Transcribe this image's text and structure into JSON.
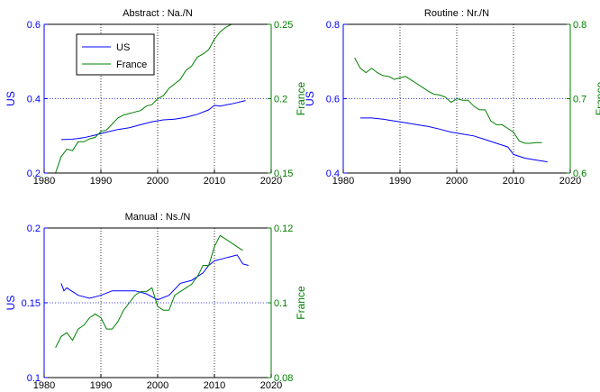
{
  "colors": {
    "us": "#0000ff",
    "france": "#008000",
    "axis": "#000000",
    "grid": "#000000"
  },
  "chart_data": [
    {
      "type": "line",
      "title": "Abstract : Na./N",
      "xlabel": "",
      "ylabel_left": "US",
      "ylabel_right": "France",
      "xlim": [
        1980,
        2020
      ],
      "xticks": [
        "1980",
        "1990",
        "2000",
        "2010",
        "2020"
      ],
      "ylim_left": [
        0.2,
        0.6
      ],
      "yticks_left": [
        "0.2",
        "0.4",
        "0.6"
      ],
      "ylim_right": [
        0.15,
        0.25
      ],
      "yticks_right": [
        "0.15",
        "0.2",
        "0.25"
      ],
      "grid": true,
      "legend": {
        "placement": "top-left",
        "entries": [
          "US",
          "France"
        ]
      },
      "series": [
        {
          "name": "US",
          "axis": "left",
          "x": [
            1983,
            1985,
            1987,
            1989,
            1991,
            1993,
            1995,
            1997,
            1999,
            2001,
            2003,
            2005,
            2007,
            2009,
            2010,
            2011,
            2013,
            2015.5
          ],
          "y": [
            0.29,
            0.291,
            0.295,
            0.302,
            0.31,
            0.317,
            0.322,
            0.33,
            0.338,
            0.343,
            0.345,
            0.35,
            0.358,
            0.37,
            0.382,
            0.38,
            0.386,
            0.395
          ]
        },
        {
          "name": "France",
          "axis": "right",
          "x": [
            1982,
            1983,
            1984,
            1985,
            1986,
            1987,
            1988,
            1989,
            1990,
            1991,
            1992,
            1993,
            1994,
            1995,
            1996,
            1997,
            1998,
            1999,
            2000,
            2001,
            2002,
            2003,
            2004,
            2005,
            2006,
            2007,
            2008,
            2009,
            2010,
            2011,
            2012,
            2013,
            2014,
            2015
          ],
          "y": [
            0.15,
            0.161,
            0.166,
            0.165,
            0.171,
            0.171,
            0.173,
            0.174,
            0.178,
            0.179,
            0.183,
            0.187,
            0.189,
            0.19,
            0.191,
            0.192,
            0.195,
            0.196,
            0.2,
            0.202,
            0.207,
            0.21,
            0.213,
            0.219,
            0.222,
            0.228,
            0.23,
            0.233,
            0.24,
            0.245,
            0.248,
            0.25,
            0.25,
            0.25
          ]
        }
      ]
    },
    {
      "type": "line",
      "title": "Routine : Nr./N",
      "xlabel": "",
      "ylabel_left": "US",
      "ylabel_right": "France",
      "xlim": [
        1980,
        2020
      ],
      "xticks": [
        "1980",
        "1990",
        "2000",
        "2010",
        "2020"
      ],
      "ylim_left": [
        0.4,
        0.8
      ],
      "yticks_left": [
        "0.4",
        "0.6",
        "0.8"
      ],
      "ylim_right": [
        0.6,
        0.8
      ],
      "yticks_right": [
        "0.6",
        "0.7",
        "0.8"
      ],
      "grid": true,
      "legend": null,
      "series": [
        {
          "name": "US",
          "axis": "left",
          "x": [
            1983,
            1985,
            1987,
            1989,
            1991,
            1993,
            1995,
            1997,
            1999,
            2001,
            2003,
            2005,
            2007,
            2009,
            2010,
            2012,
            2014,
            2016
          ],
          "y": [
            0.548,
            0.548,
            0.545,
            0.54,
            0.535,
            0.53,
            0.525,
            0.518,
            0.51,
            0.505,
            0.5,
            0.49,
            0.48,
            0.47,
            0.45,
            0.44,
            0.435,
            0.43
          ]
        },
        {
          "name": "France",
          "axis": "right",
          "x": [
            1982,
            1983,
            1984,
            1985,
            1986,
            1987,
            1988,
            1989,
            1990,
            1991,
            1992,
            1993,
            1994,
            1995,
            1996,
            1997,
            1998,
            1999,
            2000,
            2001,
            2002,
            2003,
            2004,
            2005,
            2006,
            2007,
            2008,
            2009,
            2010,
            2011,
            2012,
            2013,
            2014,
            2015
          ],
          "y": [
            0.755,
            0.741,
            0.735,
            0.741,
            0.735,
            0.731,
            0.73,
            0.726,
            0.728,
            0.73,
            0.725,
            0.72,
            0.715,
            0.71,
            0.706,
            0.705,
            0.702,
            0.695,
            0.7,
            0.698,
            0.698,
            0.69,
            0.685,
            0.685,
            0.67,
            0.665,
            0.665,
            0.66,
            0.655,
            0.643,
            0.64,
            0.64,
            0.641,
            0.641
          ]
        }
      ]
    },
    {
      "type": "line",
      "title": "Manual : Ns./N",
      "xlabel": "",
      "ylabel_left": "US",
      "ylabel_right": "France",
      "xlim": [
        1980,
        2020
      ],
      "xticks": [
        "1980",
        "1990",
        "2000",
        "2010",
        "2020"
      ],
      "ylim_left": [
        0.1,
        0.2
      ],
      "yticks_left": [
        "0.1",
        "0.15",
        "0.2"
      ],
      "ylim_right": [
        0.08,
        0.12
      ],
      "yticks_right": [
        "0.08",
        "0.1",
        "0.12"
      ],
      "grid": true,
      "legend": null,
      "series": [
        {
          "name": "US",
          "axis": "left",
          "x": [
            1983,
            1983.5,
            1984,
            1986,
            1988,
            1990,
            1992,
            1994,
            1996,
            1998,
            2000,
            2002,
            2004,
            2006,
            2008,
            2009,
            2010,
            2012,
            2014,
            2015,
            2016
          ],
          "y": [
            0.163,
            0.158,
            0.16,
            0.155,
            0.153,
            0.155,
            0.158,
            0.158,
            0.158,
            0.156,
            0.152,
            0.155,
            0.163,
            0.165,
            0.17,
            0.175,
            0.178,
            0.18,
            0.182,
            0.176,
            0.175
          ]
        },
        {
          "name": "France",
          "axis": "right",
          "x": [
            1982,
            1983,
            1984,
            1985,
            1986,
            1987,
            1988,
            1989,
            1990,
            1991,
            1992,
            1993,
            1994,
            1995,
            1996,
            1997,
            1998,
            1999,
            2000,
            2001,
            2002,
            2003,
            2004,
            2005,
            2006,
            2007,
            2008,
            2009,
            2010,
            2011,
            2012,
            2013,
            2014,
            2015
          ],
          "y": [
            0.088,
            0.091,
            0.092,
            0.09,
            0.093,
            0.094,
            0.096,
            0.097,
            0.096,
            0.093,
            0.093,
            0.095,
            0.098,
            0.1,
            0.102,
            0.103,
            0.103,
            0.104,
            0.099,
            0.098,
            0.098,
            0.102,
            0.103,
            0.104,
            0.105,
            0.107,
            0.11,
            0.11,
            0.115,
            0.118,
            0.117,
            0.116,
            0.115,
            0.114
          ]
        }
      ]
    }
  ]
}
